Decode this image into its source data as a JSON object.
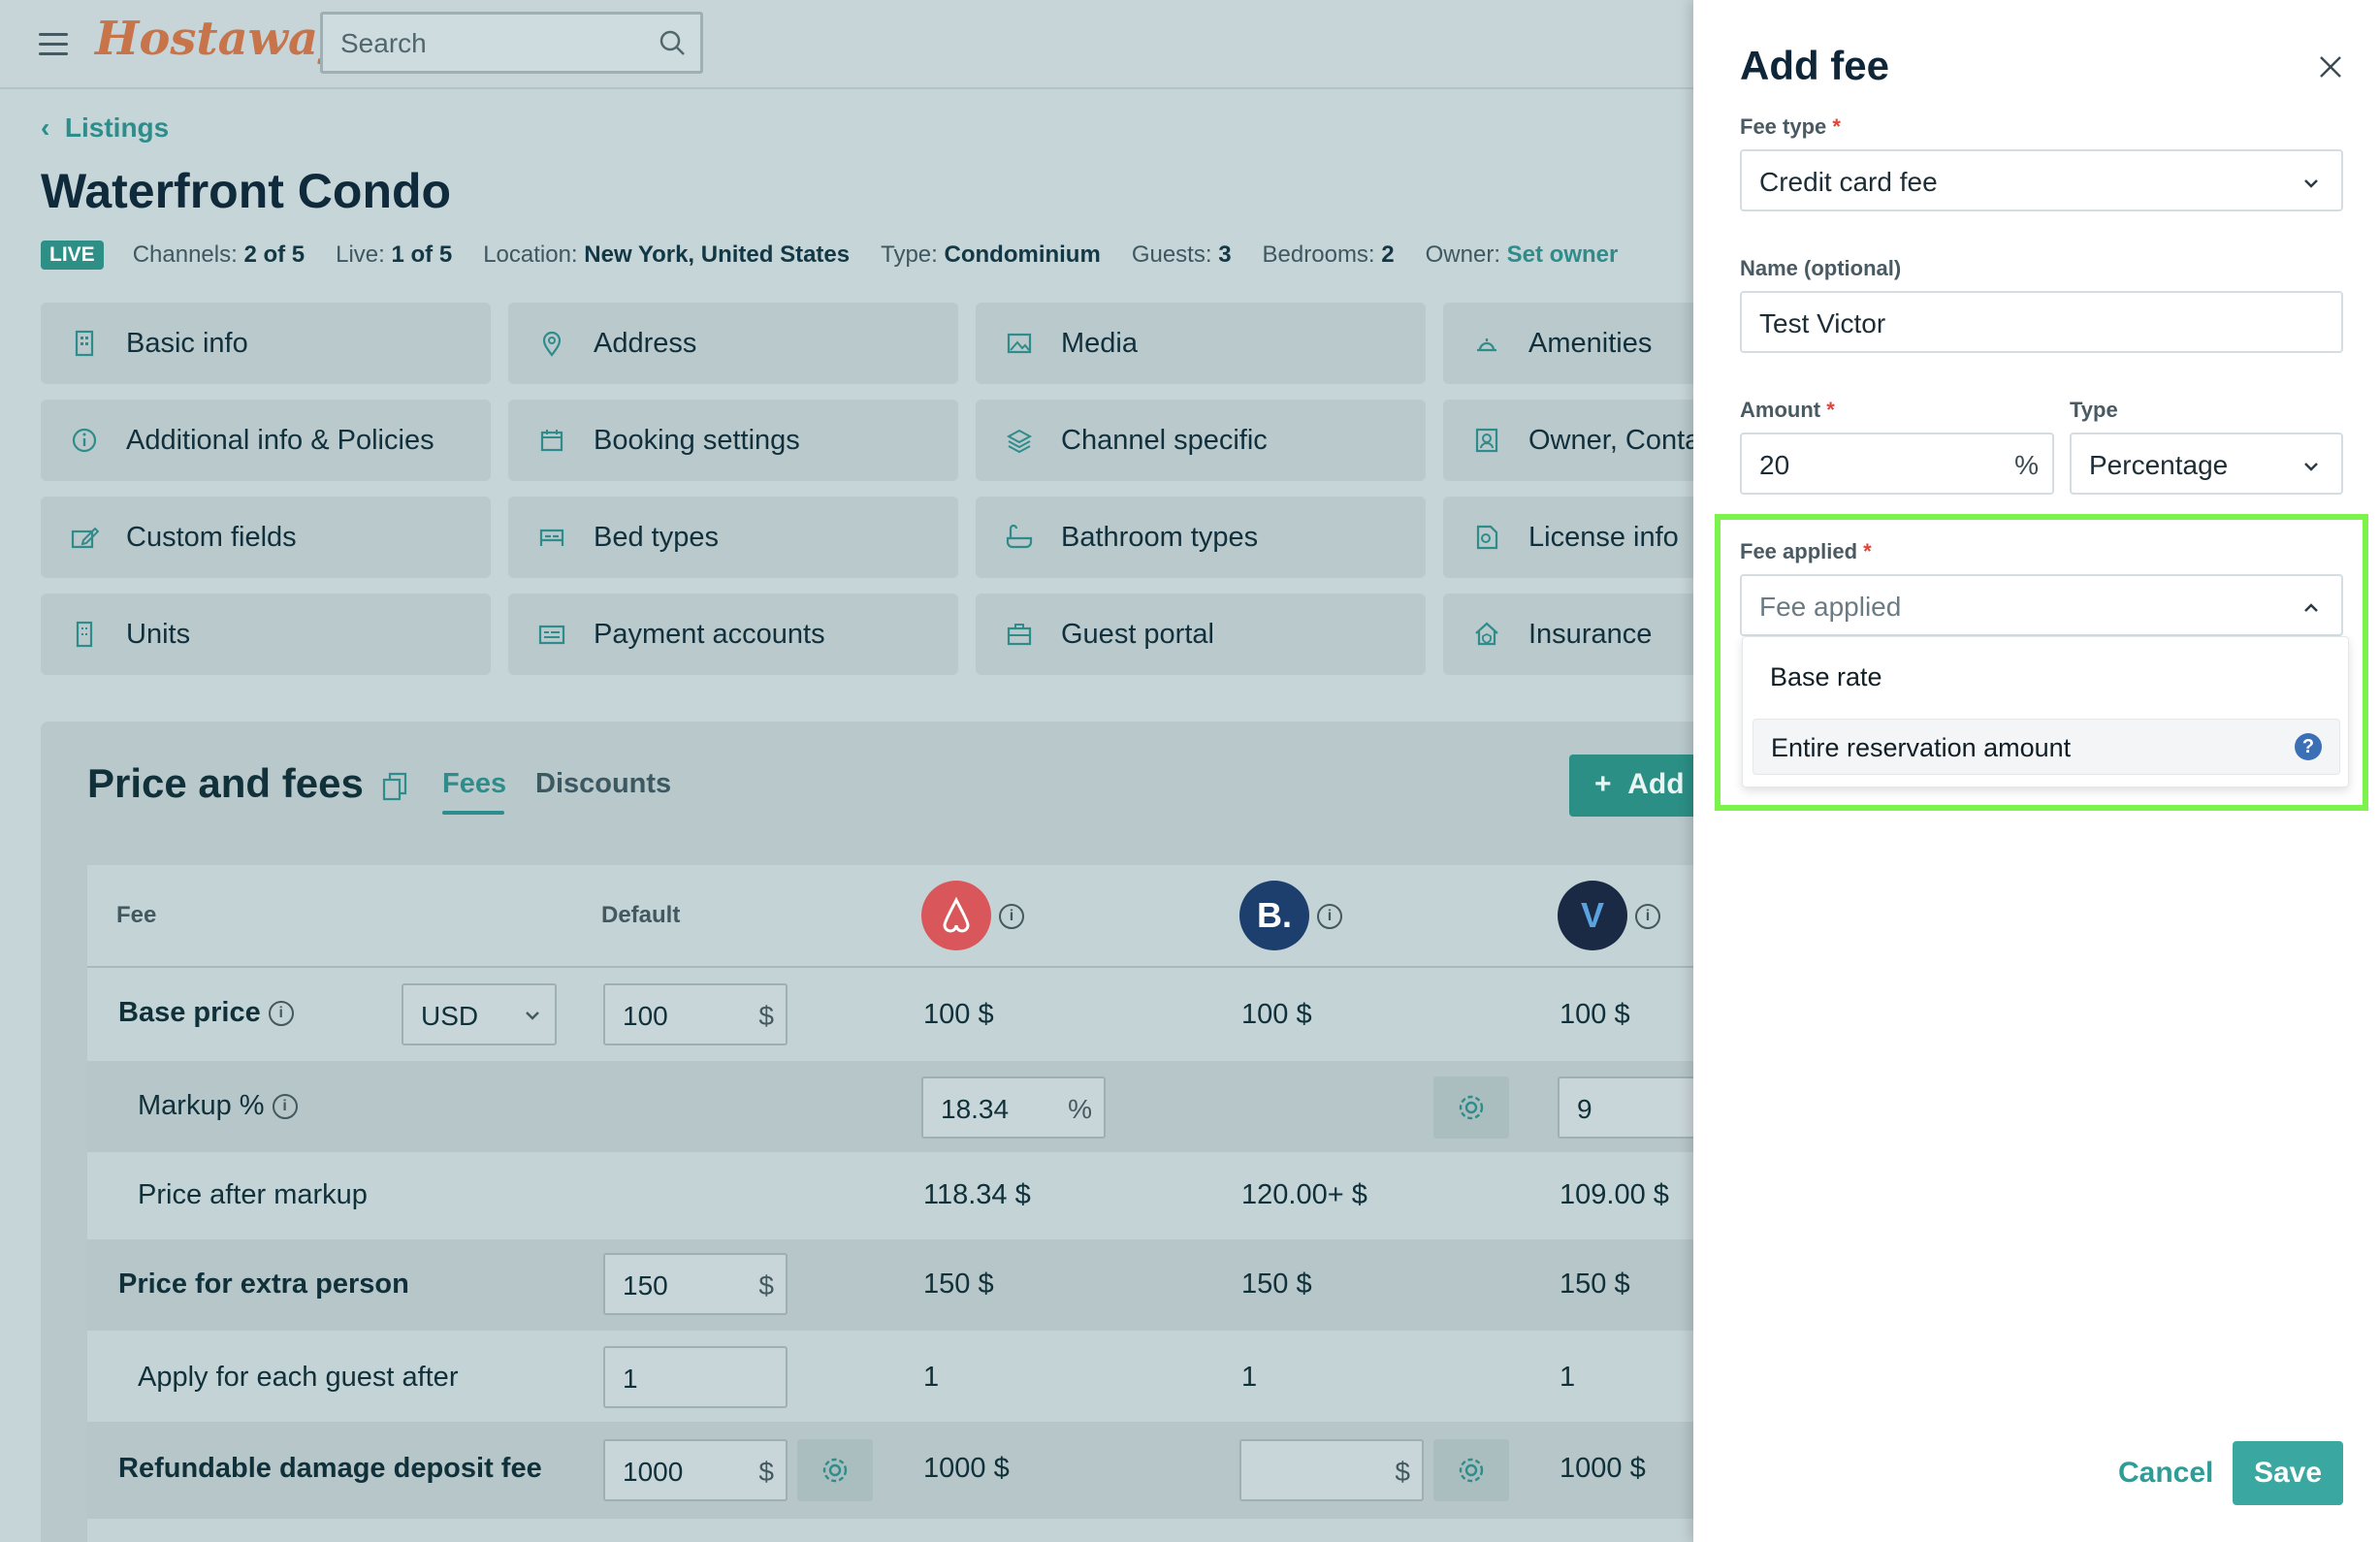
{
  "app": {
    "logo": "Hostaway",
    "search_placeholder": "Search"
  },
  "breadcrumb": {
    "back_label": "Listings"
  },
  "listing": {
    "title": "Waterfront Condo",
    "status": "LIVE",
    "meta": [
      {
        "label": "Channels: ",
        "value": "2 of 5"
      },
      {
        "label": "Live: ",
        "value": "1 of 5"
      },
      {
        "label": "Location: ",
        "value": "New York, United States"
      },
      {
        "label": "Type: ",
        "value": "Condominium"
      },
      {
        "label": "Guests: ",
        "value": "3"
      },
      {
        "label": "Bedrooms: ",
        "value": "2"
      },
      {
        "label": "Owner: ",
        "value": "Set owner"
      }
    ]
  },
  "nav_cards": [
    {
      "label": "Basic info",
      "icon": "building-icon"
    },
    {
      "label": "Address",
      "icon": "map-pin-icon"
    },
    {
      "label": "Media",
      "icon": "image-icon"
    },
    {
      "label": "Amenities",
      "icon": "bell-icon"
    },
    {
      "label": "Additional info & Policies",
      "icon": "info-icon"
    },
    {
      "label": "Booking settings",
      "icon": "calendar-icon"
    },
    {
      "label": "Channel specific",
      "icon": "layers-icon"
    },
    {
      "label": "Owner, Conta",
      "icon": "contact-icon"
    },
    {
      "label": "Custom fields",
      "icon": "edit-field-icon"
    },
    {
      "label": "Bed types",
      "icon": "bed-icon"
    },
    {
      "label": "Bathroom types",
      "icon": "bath-icon"
    },
    {
      "label": "License info",
      "icon": "license-icon"
    },
    {
      "label": "Units",
      "icon": "units-icon"
    },
    {
      "label": "Payment accounts",
      "icon": "card-icon"
    },
    {
      "label": "Guest portal",
      "icon": "briefcase-icon"
    },
    {
      "label": "Insurance",
      "icon": "house-shield-icon"
    }
  ],
  "price_fees": {
    "title": "Price and fees",
    "tabs": [
      "Fees",
      "Discounts"
    ],
    "add_label": "Add",
    "columns": {
      "fee": "Fee",
      "default": "Default"
    },
    "channels": [
      {
        "name": "airbnb",
        "glyph": "⌂",
        "color": "#d9565a"
      },
      {
        "name": "booking",
        "glyph": "B.",
        "color": "#1d3f6e"
      },
      {
        "name": "vrbo",
        "glyph": "V",
        "color": "#1a2a45"
      }
    ],
    "rows": {
      "base_price": {
        "label": "Base price",
        "currency": "USD",
        "default": "100",
        "suffix": "$",
        "c1": "100 $",
        "c2": "100 $",
        "c3": "100 $"
      },
      "markup": {
        "label": "Markup %",
        "c1": "18.34",
        "c1_suffix": "%",
        "c3": "9"
      },
      "after_markup": {
        "label": "Price after markup",
        "c1": "118.34 $",
        "c2": "120.00+ $",
        "c3": "109.00 $"
      },
      "extra_person": {
        "label": "Price for extra person",
        "default": "150",
        "suffix": "$",
        "c1": "150 $",
        "c2": "150 $",
        "c3": "150 $"
      },
      "each_guest": {
        "label": "Apply for each guest after",
        "default": "1",
        "c1": "1",
        "c2": "1",
        "c3": "1"
      },
      "deposit": {
        "label": "Refundable damage deposit fee",
        "default": "1000",
        "suffix": "$",
        "c1": "1000 $",
        "c2_suffix": "$",
        "c3": "1000 $"
      }
    }
  },
  "drawer": {
    "title": "Add fee",
    "fee_type_label": "Fee type",
    "fee_type_value": "Credit card fee",
    "name_label": "Name (optional)",
    "name_value": "Test Victor",
    "amount_label": "Amount",
    "amount_value": "20",
    "amount_suffix": "%",
    "type_label": "Type",
    "type_value": "Percentage",
    "fee_applied_label": "Fee applied",
    "fee_applied_placeholder": "Fee applied",
    "options": [
      "Base rate",
      "Entire reservation amount"
    ],
    "required_mark": "*",
    "cancel_label": "Cancel",
    "save_label": "Save"
  },
  "colors": {
    "accent": "#2e8d8a",
    "highlight": "#7cf34b",
    "save": "#3aa8a1",
    "required": "#e0453a"
  }
}
